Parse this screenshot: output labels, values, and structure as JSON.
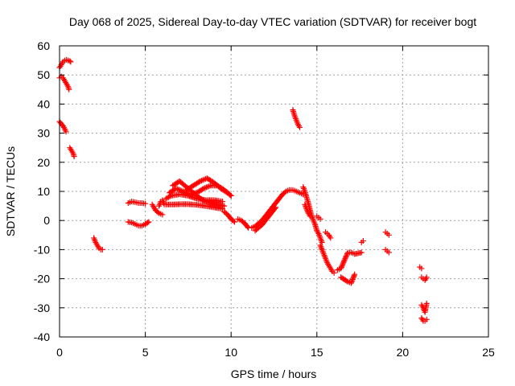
{
  "chart_data": {
    "type": "scatter",
    "title": "Day 068 of 2025, Sidereal Day-to-day VTEC variation (SDTVAR) for receiver bogt",
    "xlabel": "GPS time / hours",
    "ylabel": "SDTVAR / TECUs",
    "xlim": [
      0,
      25
    ],
    "ylim": [
      -40,
      60
    ],
    "x_ticks": [
      0,
      5,
      10,
      15,
      20,
      25
    ],
    "y_ticks": [
      -40,
      -30,
      -20,
      -10,
      0,
      10,
      20,
      30,
      40,
      50,
      60
    ],
    "x_tick_labels": [
      "0",
      "5",
      "10",
      "15",
      "20",
      "25"
    ],
    "y_tick_labels": [
      "-40",
      "-30",
      "-20",
      "-10",
      "0",
      "10",
      "20",
      "30",
      "40",
      "50",
      "60"
    ],
    "grid": true,
    "marker": "+",
    "color": "#ff0000",
    "series": [
      {
        "name": "SDTVAR",
        "segments": [
          [
            [
              0.0,
              52.5
            ],
            [
              0.1,
              53.5
            ],
            [
              0.2,
              54.5
            ],
            [
              0.3,
              55.0
            ],
            [
              0.4,
              55.2
            ],
            [
              0.5,
              55.0
            ],
            [
              0.6,
              54.8
            ],
            [
              0.65,
              54.5
            ]
          ],
          [
            [
              0.0,
              49.0
            ],
            [
              0.1,
              49.5
            ],
            [
              0.2,
              49.0
            ],
            [
              0.3,
              48.0
            ],
            [
              0.4,
              47.0
            ],
            [
              0.5,
              46.0
            ],
            [
              0.55,
              45.0
            ]
          ],
          [
            [
              0.0,
              34.0
            ],
            [
              0.1,
              33.2
            ],
            [
              0.2,
              32.5
            ],
            [
              0.3,
              31.5
            ],
            [
              0.38,
              30.5
            ]
          ],
          [
            [
              0.6,
              25.0
            ],
            [
              0.7,
              24.0
            ],
            [
              0.8,
              23.0
            ],
            [
              0.85,
              22.0
            ]
          ],
          [
            [
              2.0,
              -6.0
            ],
            [
              2.1,
              -7.5
            ],
            [
              2.2,
              -8.5
            ],
            [
              2.3,
              -9.5
            ],
            [
              2.4,
              -10.0
            ],
            [
              2.5,
              -10.0
            ]
          ],
          [
            [
              4.0,
              6.0
            ],
            [
              4.2,
              6.5
            ],
            [
              4.4,
              6.3
            ],
            [
              4.6,
              6.0
            ],
            [
              4.8,
              6.0
            ],
            [
              5.0,
              5.8
            ]
          ],
          [
            [
              4.0,
              -0.5
            ],
            [
              4.2,
              -0.7
            ],
            [
              4.4,
              -1.2
            ],
            [
              4.6,
              -1.8
            ],
            [
              4.8,
              -1.8
            ],
            [
              5.0,
              -1.2
            ],
            [
              5.2,
              -0.5
            ]
          ],
          [
            [
              5.4,
              5.5
            ],
            [
              5.5,
              4.5
            ],
            [
              5.6,
              3.5
            ],
            [
              5.8,
              2.5
            ],
            [
              6.0,
              2.0
            ]
          ],
          [
            [
              5.8,
              5.0
            ],
            [
              5.9,
              6.5
            ],
            [
              6.0,
              7.0
            ],
            [
              6.1,
              5.5
            ]
          ],
          [
            [
              6.2,
              5.5
            ],
            [
              6.6,
              5.5
            ],
            [
              7.0,
              5.6
            ],
            [
              7.5,
              5.6
            ],
            [
              8.0,
              5.4
            ],
            [
              8.5,
              5.0
            ],
            [
              9.0,
              4.5
            ],
            [
              9.5,
              4.0
            ]
          ],
          [
            [
              6.2,
              7.5
            ],
            [
              6.5,
              8.5
            ],
            [
              7.0,
              9.0
            ],
            [
              7.5,
              8.5
            ],
            [
              8.0,
              7.5
            ],
            [
              8.5,
              7.0
            ],
            [
              9.0,
              7.0
            ],
            [
              9.5,
              6.5
            ]
          ],
          [
            [
              6.4,
              9.5
            ],
            [
              6.8,
              11.0
            ],
            [
              7.2,
              10.0
            ],
            [
              7.6,
              9.0
            ],
            [
              8.0,
              9.5
            ],
            [
              8.4,
              11.0
            ],
            [
              8.8,
              12.0
            ],
            [
              9.2,
              12.0
            ],
            [
              9.6,
              10.5
            ],
            [
              10.0,
              8.5
            ]
          ],
          [
            [
              6.6,
              12.0
            ],
            [
              7.0,
              13.5
            ],
            [
              7.2,
              12.5
            ],
            [
              7.6,
              10.5
            ],
            [
              8.0,
              8.5
            ],
            [
              8.4,
              6.8
            ],
            [
              8.8,
              6.0
            ],
            [
              9.2,
              5.5
            ],
            [
              9.6,
              5.0
            ]
          ],
          [
            [
              7.4,
              10.5
            ],
            [
              7.8,
              12.0
            ],
            [
              8.2,
              13.5
            ],
            [
              8.6,
              14.5
            ],
            [
              9.0,
              13.0
            ],
            [
              9.4,
              11.0
            ],
            [
              9.8,
              9.5
            ],
            [
              10.0,
              8.5
            ]
          ],
          [
            [
              9.6,
              3.0
            ],
            [
              9.8,
              2.0
            ],
            [
              10.0,
              0.5
            ],
            [
              10.2,
              -0.5
            ]
          ],
          [
            [
              10.4,
              0.5
            ],
            [
              10.6,
              0.0
            ],
            [
              10.8,
              -1.0
            ],
            [
              11.0,
              -2.5
            ]
          ],
          [
            [
              11.2,
              -2.5
            ],
            [
              11.4,
              -2.0
            ],
            [
              11.6,
              -1.0
            ],
            [
              11.8,
              0.0
            ],
            [
              12.0,
              1.5
            ],
            [
              12.2,
              3.0
            ],
            [
              12.4,
              4.5
            ],
            [
              12.6,
              6.0
            ],
            [
              12.8,
              7.5
            ],
            [
              13.0,
              9.0
            ],
            [
              13.2,
              10.0
            ],
            [
              13.4,
              10.5
            ],
            [
              13.6,
              10.5
            ],
            [
              13.8,
              10.0
            ],
            [
              14.0,
              9.5
            ],
            [
              14.2,
              9.0
            ]
          ],
          [
            [
              11.4,
              -3.5
            ],
            [
              11.6,
              -2.5
            ],
            [
              11.8,
              -1.5
            ],
            [
              12.0,
              0.0
            ],
            [
              12.2,
              1.5
            ],
            [
              12.4,
              3.0
            ],
            [
              12.6,
              4.5
            ]
          ],
          [
            [
              13.6,
              38.0
            ],
            [
              13.7,
              36.0
            ],
            [
              13.8,
              34.5
            ],
            [
              13.9,
              33.0
            ],
            [
              14.0,
              32.0
            ]
          ],
          [
            [
              14.2,
              11.5
            ],
            [
              14.3,
              10.0
            ],
            [
              14.4,
              8.0
            ],
            [
              14.5,
              6.0
            ],
            [
              14.6,
              3.5
            ],
            [
              14.7,
              1.5
            ],
            [
              14.8,
              0.0
            ],
            [
              14.9,
              -1.5
            ],
            [
              15.0,
              -3.5
            ]
          ],
          [
            [
              14.3,
              5.5
            ],
            [
              14.4,
              4.0
            ],
            [
              14.5,
              2.5
            ],
            [
              14.6,
              1.5
            ]
          ],
          [
            [
              15.0,
              1.5
            ],
            [
              15.1,
              1.0
            ],
            [
              15.2,
              0.5
            ]
          ],
          [
            [
              15.0,
              -3.5
            ],
            [
              15.1,
              -4.5
            ],
            [
              15.2,
              -6.0
            ],
            [
              15.3,
              -7.5
            ]
          ],
          [
            [
              15.5,
              -4.0
            ],
            [
              15.6,
              -4.5
            ],
            [
              15.7,
              -5.0
            ],
            [
              15.8,
              -6.0
            ]
          ],
          [
            [
              15.2,
              -8.5
            ],
            [
              15.3,
              -10.0
            ],
            [
              15.4,
              -11.5
            ],
            [
              15.5,
              -13.0
            ],
            [
              15.6,
              -14.5
            ],
            [
              15.7,
              -15.5
            ],
            [
              15.8,
              -16.5
            ],
            [
              15.9,
              -17.5
            ],
            [
              16.0,
              -18.0
            ]
          ],
          [
            [
              16.2,
              -17.0
            ],
            [
              16.4,
              -16.5
            ],
            [
              16.8,
              -11.0
            ],
            [
              17.0,
              -11.0
            ],
            [
              17.2,
              -11.5
            ],
            [
              17.6,
              -11.0
            ]
          ],
          [
            [
              16.4,
              -19.5
            ],
            [
              16.8,
              -21.0
            ],
            [
              17.0,
              -21.5
            ],
            [
              17.2,
              -18.5
            ]
          ],
          [
            [
              17.6,
              -7.5
            ],
            [
              17.7,
              -7.0
            ]
          ],
          [
            [
              19.0,
              -4.0
            ],
            [
              19.1,
              -4.5
            ],
            [
              19.2,
              -5.0
            ]
          ],
          [
            [
              19.0,
              -10.0
            ],
            [
              19.1,
              -10.5
            ],
            [
              19.2,
              -11.0
            ]
          ],
          [
            [
              21.0,
              -16.0
            ],
            [
              21.1,
              -16.5
            ]
          ],
          [
            [
              21.1,
              -19.5
            ],
            [
              21.2,
              -20.0
            ],
            [
              21.3,
              -20.5
            ],
            [
              21.4,
              -19.5
            ]
          ],
          [
            [
              21.1,
              -29.0
            ],
            [
              21.2,
              -30.0
            ],
            [
              21.3,
              -31.5
            ],
            [
              21.4,
              -28.5
            ]
          ],
          [
            [
              21.1,
              -33.5
            ],
            [
              21.2,
              -34.5
            ],
            [
              21.3,
              -34.5
            ],
            [
              21.4,
              -34.0
            ]
          ]
        ]
      }
    ]
  }
}
